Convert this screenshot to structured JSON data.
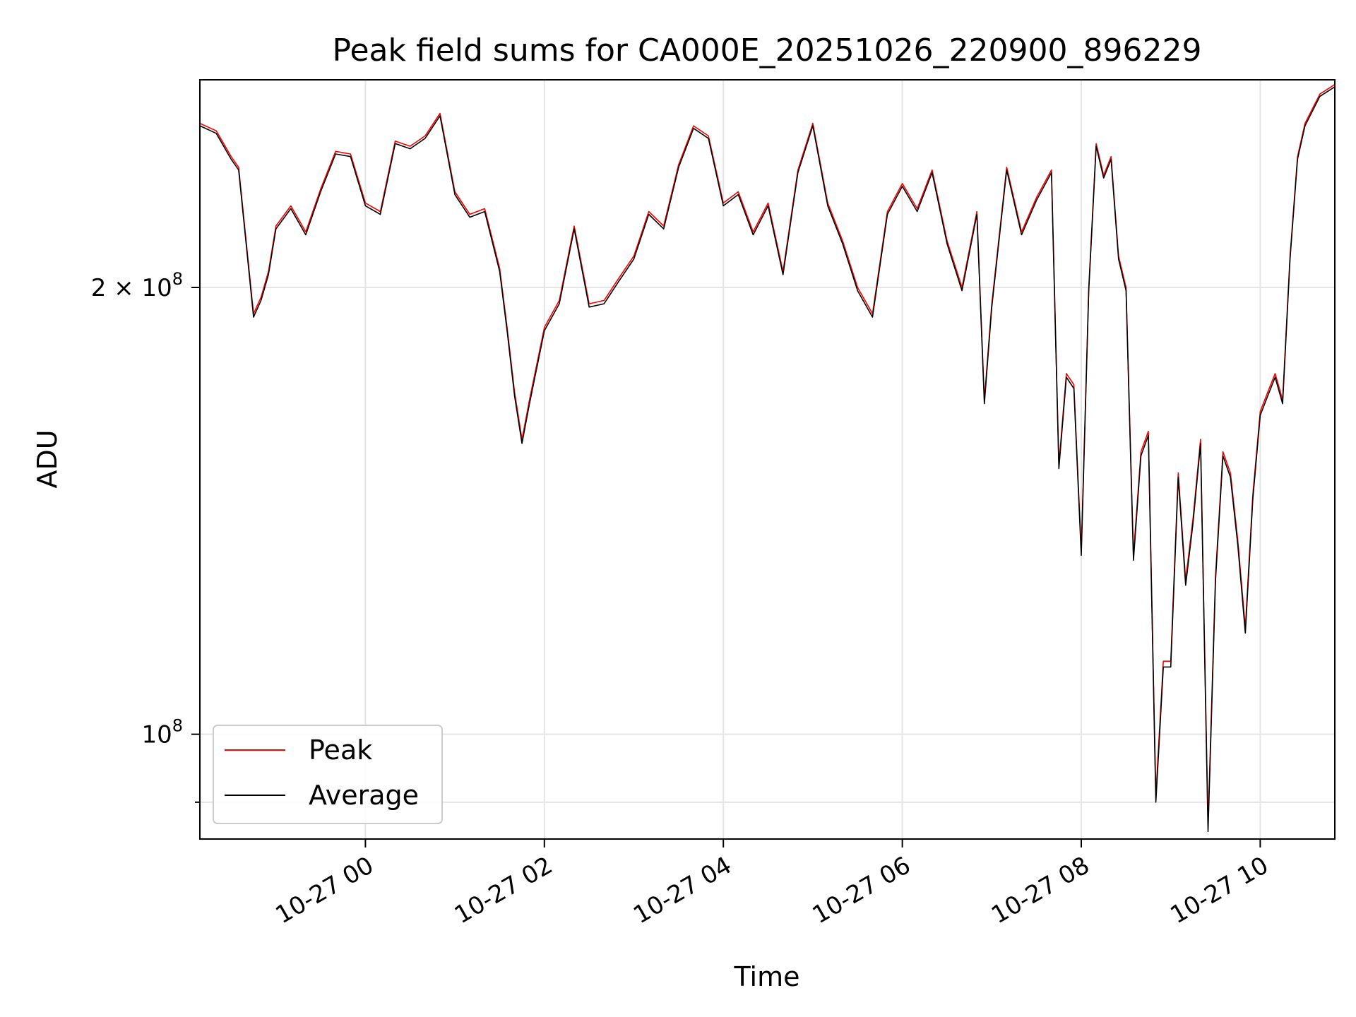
{
  "chart_data": {
    "type": "line",
    "title": "Peak field sums for CA000E_20251026_220900_896229",
    "xlabel": "Time",
    "ylabel": "ADU",
    "y_scale": "log",
    "grid": true,
    "legend_position": "lower-left",
    "xlim": [
      "2025-10-26 22:09",
      "2025-10-27 10:50"
    ],
    "ylim": [
      85000000,
      276000000
    ],
    "x_ticks": [
      {
        "value": "2025-10-27 00:00",
        "label": "10-27 00"
      },
      {
        "value": "2025-10-27 02:00",
        "label": "10-27 02"
      },
      {
        "value": "2025-10-27 04:00",
        "label": "10-27 04"
      },
      {
        "value": "2025-10-27 06:00",
        "label": "10-27 06"
      },
      {
        "value": "2025-10-27 08:00",
        "label": "10-27 08"
      },
      {
        "value": "2025-10-27 10:00",
        "label": "10-27 10"
      }
    ],
    "y_ticks": [
      {
        "value": 100000000,
        "base": "10",
        "exp": "8",
        "mantissa": ""
      },
      {
        "value": 200000000,
        "base": "10",
        "exp": "8",
        "mantissa": "2 × "
      }
    ],
    "y_minor_ticks": [
      90000000
    ],
    "x": [
      "2025-10-26 22:09",
      "2025-10-26 22:20",
      "2025-10-26 22:30",
      "2025-10-26 22:35",
      "2025-10-26 22:40",
      "2025-10-26 22:45",
      "2025-10-26 22:50",
      "2025-10-26 22:55",
      "2025-10-26 23:00",
      "2025-10-26 23:10",
      "2025-10-26 23:20",
      "2025-10-26 23:30",
      "2025-10-26 23:40",
      "2025-10-26 23:50",
      "2025-10-27 00:00",
      "2025-10-27 00:10",
      "2025-10-27 00:20",
      "2025-10-27 00:30",
      "2025-10-27 00:40",
      "2025-10-27 00:50",
      "2025-10-27 01:00",
      "2025-10-27 01:10",
      "2025-10-27 01:20",
      "2025-10-27 01:30",
      "2025-10-27 01:35",
      "2025-10-27 01:40",
      "2025-10-27 01:45",
      "2025-10-27 01:50",
      "2025-10-27 02:00",
      "2025-10-27 02:10",
      "2025-10-27 02:20",
      "2025-10-27 02:30",
      "2025-10-27 02:40",
      "2025-10-27 02:50",
      "2025-10-27 03:00",
      "2025-10-27 03:10",
      "2025-10-27 03:20",
      "2025-10-27 03:30",
      "2025-10-27 03:40",
      "2025-10-27 03:50",
      "2025-10-27 04:00",
      "2025-10-27 04:10",
      "2025-10-27 04:20",
      "2025-10-27 04:30",
      "2025-10-27 04:40",
      "2025-10-27 04:50",
      "2025-10-27 05:00",
      "2025-10-27 05:10",
      "2025-10-27 05:20",
      "2025-10-27 05:30",
      "2025-10-27 05:40",
      "2025-10-27 05:50",
      "2025-10-27 06:00",
      "2025-10-27 06:10",
      "2025-10-27 06:20",
      "2025-10-27 06:30",
      "2025-10-27 06:40",
      "2025-10-27 06:50",
      "2025-10-27 06:55",
      "2025-10-27 07:00",
      "2025-10-27 07:10",
      "2025-10-27 07:20",
      "2025-10-27 07:30",
      "2025-10-27 07:40",
      "2025-10-27 07:45",
      "2025-10-27 07:50",
      "2025-10-27 07:55",
      "2025-10-27 08:00",
      "2025-10-27 08:05",
      "2025-10-27 08:10",
      "2025-10-27 08:15",
      "2025-10-27 08:20",
      "2025-10-27 08:25",
      "2025-10-27 08:30",
      "2025-10-27 08:35",
      "2025-10-27 08:40",
      "2025-10-27 08:45",
      "2025-10-27 08:50",
      "2025-10-27 08:55",
      "2025-10-27 09:00",
      "2025-10-27 09:05",
      "2025-10-27 09:10",
      "2025-10-27 09:15",
      "2025-10-27 09:20",
      "2025-10-27 09:25",
      "2025-10-27 09:30",
      "2025-10-27 09:35",
      "2025-10-27 09:40",
      "2025-10-27 09:45",
      "2025-10-27 09:50",
      "2025-10-27 09:55",
      "2025-10-27 10:00",
      "2025-10-27 10:05",
      "2025-10-27 10:10",
      "2025-10-27 10:15",
      "2025-10-27 10:20",
      "2025-10-27 10:25",
      "2025-10-27 10:30",
      "2025-10-27 10:40",
      "2025-10-27 10:50"
    ],
    "series": [
      {
        "name": "Peak",
        "color": "#ff0000",
        "values": [
          258000000,
          255000000,
          245000000,
          241000000,
          215000000,
          192000000,
          197000000,
          205000000,
          220000000,
          227000000,
          218000000,
          233000000,
          247000000,
          246000000,
          228000000,
          225000000,
          251000000,
          249000000,
          253000000,
          262000000,
          232000000,
          224000000,
          226000000,
          206000000,
          188000000,
          170000000,
          158000000,
          168000000,
          188000000,
          196000000,
          220000000,
          195000000,
          196000000,
          203000000,
          210000000,
          225000000,
          220000000,
          242000000,
          257000000,
          253000000,
          228000000,
          232000000,
          218000000,
          228000000,
          205000000,
          240000000,
          258000000,
          228000000,
          215000000,
          200000000,
          192000000,
          225000000,
          235000000,
          226000000,
          240000000,
          215000000,
          200000000,
          225000000,
          168000000,
          195000000,
          241000000,
          218000000,
          230000000,
          240000000,
          152000000,
          175000000,
          172000000,
          133000000,
          200000000,
          250000000,
          238000000,
          245000000,
          210000000,
          200000000,
          132000000,
          155000000,
          160000000,
          91000000,
          112000000,
          112000000,
          150000000,
          127000000,
          140000000,
          158000000,
          87000000,
          128000000,
          155000000,
          150000000,
          135000000,
          118000000,
          145000000,
          165000000,
          170000000,
          175000000,
          168000000,
          210000000,
          245000000,
          258000000,
          270000000,
          274000000
        ]
      },
      {
        "name": "Average",
        "color": "#000000",
        "values": [
          257000000,
          254000000,
          244000000,
          240000000,
          214000000,
          191000000,
          196000000,
          204000000,
          219000000,
          226000000,
          217000000,
          232000000,
          246000000,
          245000000,
          227000000,
          224000000,
          250000000,
          248000000,
          252000000,
          261000000,
          231000000,
          223000000,
          225000000,
          205000000,
          187000000,
          169000000,
          157000000,
          167000000,
          187000000,
          195000000,
          219000000,
          194000000,
          195000000,
          202000000,
          209000000,
          224000000,
          219000000,
          241000000,
          256000000,
          252000000,
          227000000,
          231000000,
          217000000,
          227000000,
          204000000,
          239000000,
          257000000,
          227000000,
          214000000,
          199000000,
          191000000,
          224000000,
          234000000,
          225000000,
          239000000,
          214000000,
          199000000,
          224000000,
          167000000,
          194000000,
          240000000,
          217000000,
          229000000,
          239000000,
          151000000,
          174000000,
          171000000,
          132000000,
          199000000,
          249000000,
          237000000,
          244000000,
          209000000,
          199000000,
          131000000,
          154000000,
          159000000,
          90000000,
          111000000,
          111000000,
          149000000,
          126000000,
          139000000,
          157000000,
          86000000,
          127000000,
          154000000,
          149000000,
          134000000,
          117000000,
          144000000,
          164000000,
          169000000,
          174000000,
          167000000,
          209000000,
          244000000,
          257000000,
          269000000,
          273000000
        ]
      }
    ]
  }
}
